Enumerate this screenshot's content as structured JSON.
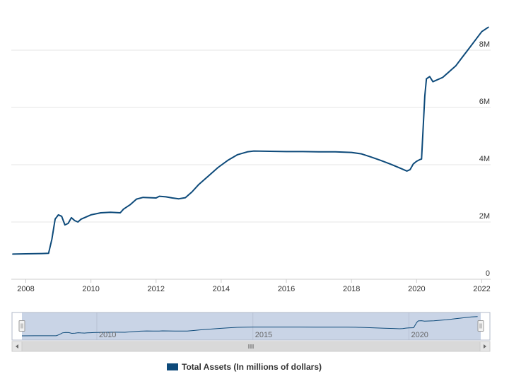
{
  "chart_data": {
    "type": "line",
    "title": "",
    "xlabel": "",
    "ylabel": "",
    "x_ticks": [
      "2008",
      "2010",
      "2012",
      "2014",
      "2016",
      "2018",
      "2020",
      "2022"
    ],
    "y_ticks": [
      "0",
      "2M",
      "4M",
      "6M",
      "8M"
    ],
    "xlim": [
      2007.6,
      2022.3
    ],
    "ylim": [
      0,
      9000000
    ],
    "grid": "horizontal",
    "legend": "bottom",
    "series": [
      {
        "name": "Total Assets (In millions of dollars)",
        "color": "#0d4a7a",
        "x": [
          2007.6,
          2008.0,
          2008.5,
          2008.7,
          2008.8,
          2008.9,
          2009.0,
          2009.1,
          2009.2,
          2009.3,
          2009.4,
          2009.5,
          2009.6,
          2009.7,
          2009.8,
          2009.9,
          2010.0,
          2010.3,
          2010.6,
          2010.9,
          2011.0,
          2011.2,
          2011.4,
          2011.6,
          2011.8,
          2012.0,
          2012.1,
          2012.3,
          2012.5,
          2012.7,
          2012.9,
          2013.1,
          2013.3,
          2013.6,
          2013.9,
          2014.2,
          2014.5,
          2014.8,
          2015.0,
          2015.5,
          2016.0,
          2016.5,
          2017.0,
          2017.5,
          2018.0,
          2018.3,
          2018.6,
          2018.9,
          2019.2,
          2019.5,
          2019.7,
          2019.8,
          2019.9,
          2020.0,
          2020.1,
          2020.15,
          2020.2,
          2020.25,
          2020.3,
          2020.4,
          2020.5,
          2020.8,
          2021.0,
          2021.2,
          2021.4,
          2021.6,
          2021.8,
          2022.0,
          2022.2
        ],
        "y": [
          880000,
          890000,
          900000,
          905000,
          1400000,
          2100000,
          2250000,
          2200000,
          1900000,
          1950000,
          2150000,
          2050000,
          2000000,
          2100000,
          2150000,
          2200000,
          2250000,
          2320000,
          2340000,
          2320000,
          2450000,
          2600000,
          2800000,
          2860000,
          2850000,
          2840000,
          2900000,
          2880000,
          2840000,
          2810000,
          2850000,
          3050000,
          3300000,
          3600000,
          3900000,
          4150000,
          4350000,
          4450000,
          4480000,
          4470000,
          4460000,
          4460000,
          4450000,
          4450000,
          4430000,
          4380000,
          4270000,
          4150000,
          4020000,
          3880000,
          3780000,
          3830000,
          4030000,
          4120000,
          4180000,
          4200000,
          5300000,
          6400000,
          7000000,
          7080000,
          6900000,
          7050000,
          7250000,
          7450000,
          7750000,
          8050000,
          8350000,
          8650000,
          8800000
        ]
      }
    ]
  },
  "navigator": {
    "labels": [
      "2010",
      "2015",
      "2020"
    ],
    "x": [
      2010,
      2015,
      2020
    ],
    "left_handle_icon": "grip-icon",
    "right_handle_icon": "grip-icon",
    "scroll_left_icon": "arrow-left-icon",
    "scroll_right_icon": "arrow-right-icon",
    "scroll_grip_icon": "grip-icon"
  },
  "legend": {
    "label": "Total Assets (In millions of dollars)",
    "color": "#0d4a7a"
  },
  "colors": {
    "line": "#0d4a7a",
    "grid": "#e6e6e6",
    "navigator_fill": "#c9d4e6",
    "scrollbar": "#d9d9d9"
  }
}
